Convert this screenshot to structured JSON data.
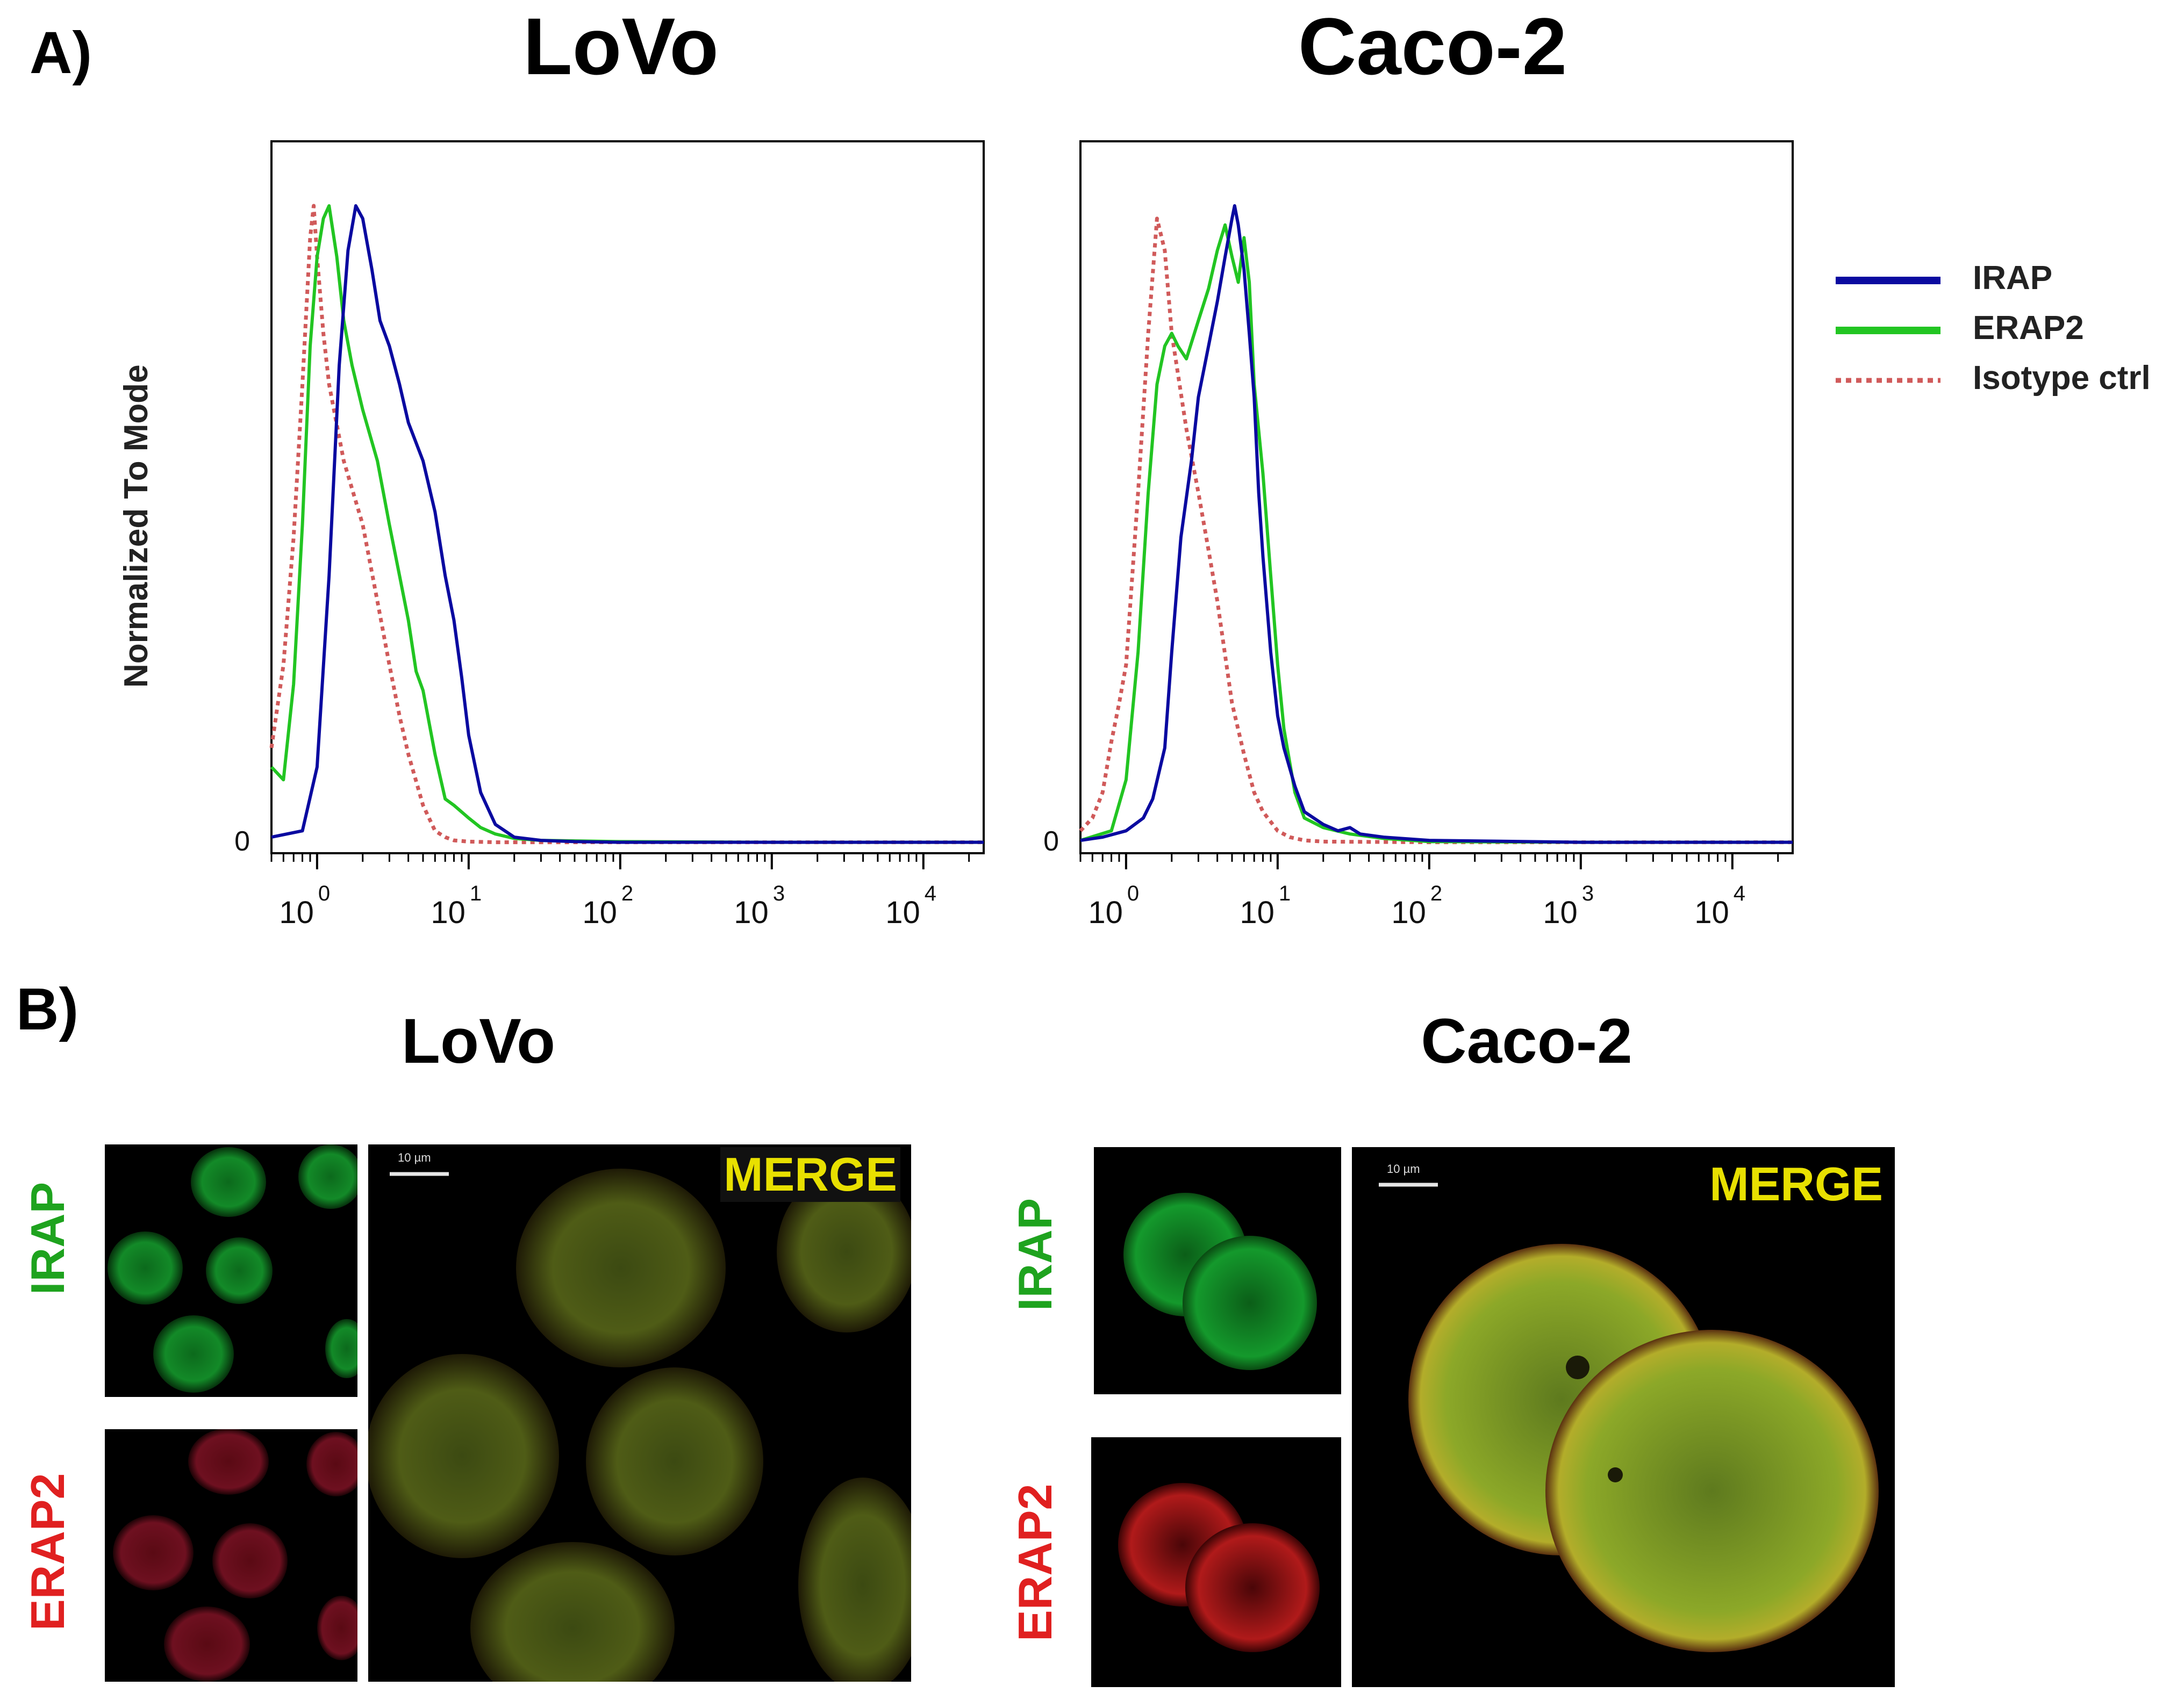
{
  "panel_a": {
    "letter": "A)",
    "charts": [
      {
        "title": "LoVo",
        "ylabel": "Normalized To Mode",
        "yzero": "0"
      },
      {
        "title": "Caco-2",
        "ylabel": "",
        "yzero": "0"
      }
    ]
  },
  "legend": {
    "items": [
      {
        "label": "IRAP",
        "color": "#0a0aa0",
        "style": "solid"
      },
      {
        "label": "ERAP2",
        "color": "#22c522",
        "style": "solid"
      },
      {
        "label": "Isotype ctrl",
        "color": "#d05a5a",
        "style": "dotted"
      }
    ]
  },
  "chart_data": [
    {
      "type": "line",
      "title": "LoVo",
      "xlabel": "",
      "ylabel": "Normalized To Mode",
      "x_scale": "log",
      "xlim": [
        0.5,
        25000
      ],
      "ylim": [
        0,
        100
      ],
      "xticks": [
        {
          "base": "10",
          "exp": "0",
          "value": 1
        },
        {
          "base": "10",
          "exp": "1",
          "value": 10
        },
        {
          "base": "10",
          "exp": "2",
          "value": 100
        },
        {
          "base": "10",
          "exp": "3",
          "value": 1000
        },
        {
          "base": "10",
          "exp": "4",
          "value": 10000
        }
      ],
      "series": [
        {
          "name": "IRAP",
          "color": "#0a0aa0",
          "style": "solid",
          "x": [
            0.5,
            0.8,
            1.0,
            1.2,
            1.4,
            1.6,
            1.8,
            2.0,
            2.3,
            2.6,
            3.0,
            3.5,
            4.0,
            5.0,
            6.0,
            7.0,
            8.0,
            9.0,
            10.0,
            12.0,
            15.0,
            20.0,
            30.0,
            50.0,
            100.0,
            1000.0,
            25000.0
          ],
          "y": [
            1,
            2,
            12,
            42,
            75,
            93,
            100,
            98,
            90,
            82,
            78,
            72,
            66,
            60,
            52,
            42,
            35,
            26,
            17,
            8,
            3,
            1,
            0.5,
            0.3,
            0.2,
            0.2,
            0.2
          ]
        },
        {
          "name": "ERAP2",
          "color": "#22c522",
          "style": "solid",
          "x": [
            0.5,
            0.6,
            0.7,
            0.8,
            0.9,
            1.0,
            1.1,
            1.2,
            1.35,
            1.5,
            1.7,
            2.0,
            2.5,
            3.0,
            3.5,
            4.0,
            4.5,
            5.0,
            6.0,
            7.0,
            8.0,
            10.0,
            12.0,
            15.0,
            20.0,
            30.0,
            100.0,
            1000.0,
            25000.0
          ],
          "y": [
            12,
            10,
            25,
            50,
            78,
            92,
            98,
            100,
            92,
            82,
            75,
            68,
            60,
            50,
            42,
            35,
            27,
            24,
            14,
            7,
            6,
            4,
            2.5,
            1.5,
            0.8,
            0.5,
            0.3,
            0.2,
            0.2
          ]
        },
        {
          "name": "Isotype ctrl",
          "color": "#d05a5a",
          "style": "dotted",
          "x": [
            0.5,
            0.6,
            0.7,
            0.8,
            0.9,
            0.95,
            1.0,
            1.1,
            1.2,
            1.5,
            2.0,
            2.5,
            3.0,
            3.5,
            4.0,
            5.0,
            6.0,
            7.0,
            8.0,
            10.0,
            15.0,
            25000.0
          ],
          "y": [
            15,
            28,
            48,
            72,
            95,
            100,
            92,
            80,
            72,
            60,
            50,
            38,
            28,
            20,
            14,
            6,
            2,
            1,
            0.5,
            0.3,
            0.2,
            0.2
          ]
        }
      ]
    },
    {
      "type": "line",
      "title": "Caco-2",
      "xlabel": "",
      "ylabel": "",
      "x_scale": "log",
      "xlim": [
        0.5,
        25000
      ],
      "ylim": [
        0,
        100
      ],
      "xticks": [
        {
          "base": "10",
          "exp": "0",
          "value": 1
        },
        {
          "base": "10",
          "exp": "1",
          "value": 10
        },
        {
          "base": "10",
          "exp": "2",
          "value": 100
        },
        {
          "base": "10",
          "exp": "3",
          "value": 1000
        },
        {
          "base": "10",
          "exp": "4",
          "value": 10000
        }
      ],
      "series": [
        {
          "name": "IRAP",
          "color": "#0a0aa0",
          "style": "solid",
          "x": [
            0.5,
            0.7,
            1.0,
            1.3,
            1.5,
            1.8,
            2.0,
            2.3,
            2.7,
            3.0,
            3.5,
            4.0,
            4.5,
            5.0,
            5.2,
            5.5,
            6.0,
            6.5,
            7.0,
            7.5,
            8.0,
            9.0,
            10.0,
            11.0,
            13.0,
            15.0,
            20.0,
            25.0,
            30.0,
            35.0,
            50.0,
            100.0,
            1000.0,
            25000.0
          ],
          "y": [
            0.5,
            1,
            2,
            4,
            7,
            15,
            30,
            48,
            60,
            70,
            78,
            85,
            92,
            98,
            100,
            97,
            90,
            80,
            70,
            55,
            45,
            30,
            20,
            15,
            9,
            5,
            3,
            2,
            2.5,
            1.5,
            1,
            0.5,
            0.2,
            0.2
          ]
        },
        {
          "name": "ERAP2",
          "color": "#22c522",
          "style": "solid",
          "x": [
            0.5,
            0.8,
            1.0,
            1.2,
            1.4,
            1.6,
            1.8,
            2.0,
            2.2,
            2.5,
            3.0,
            3.5,
            4.0,
            4.5,
            5.0,
            5.5,
            6.0,
            6.5,
            7.0,
            8.0,
            9.0,
            10.0,
            11.0,
            13.0,
            15.0,
            20.0,
            30.0,
            50.0,
            100.0,
            1000.0,
            25000.0
          ],
          "y": [
            0.5,
            2,
            10,
            30,
            55,
            72,
            78,
            80,
            78,
            76,
            82,
            87,
            93,
            97,
            92,
            88,
            95,
            88,
            72,
            58,
            42,
            28,
            18,
            8,
            4,
            2.5,
            1.5,
            0.8,
            0.3,
            0.2,
            0.2
          ]
        },
        {
          "name": "Isotype ctrl",
          "color": "#d05a5a",
          "style": "dotted",
          "x": [
            0.5,
            0.6,
            0.7,
            0.8,
            0.9,
            1.0,
            1.2,
            1.4,
            1.6,
            1.8,
            2.0,
            2.5,
            3.0,
            3.5,
            4.0,
            5.0,
            6.0,
            7.0,
            8.0,
            10.0,
            12.0,
            15.0,
            20.0,
            100.0,
            25000.0
          ],
          "y": [
            2,
            4,
            8,
            16,
            22,
            28,
            55,
            80,
            98,
            93,
            80,
            65,
            55,
            46,
            38,
            22,
            14,
            8,
            5,
            2,
            1,
            0.5,
            0.3,
            0.2,
            0.2
          ]
        }
      ]
    }
  ],
  "panel_b": {
    "letter": "B)",
    "groups": [
      {
        "title": "LoVo",
        "label_top": "IRAP",
        "label_bottom": "ERAP2",
        "merge": "MERGE",
        "scale": "10 µm"
      },
      {
        "title": "Caco-2",
        "label_top": "IRAP",
        "label_bottom": "ERAP2",
        "merge": "MERGE",
        "scale": "10 µm"
      }
    ]
  }
}
